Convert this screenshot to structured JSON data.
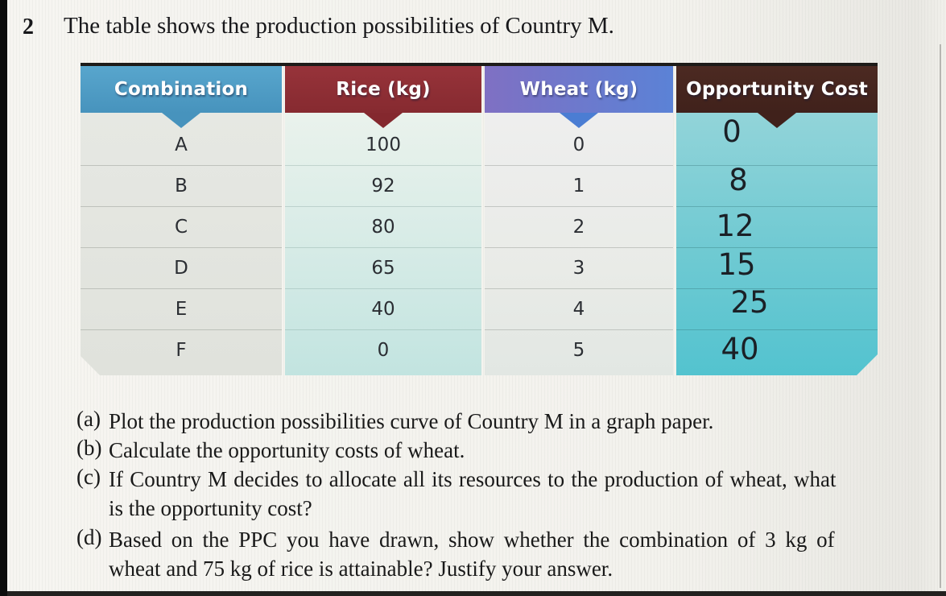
{
  "page": {
    "exercise_number": "2",
    "title": "The table shows the production possibilities of Country M."
  },
  "table": {
    "columns": [
      {
        "label": "Combination"
      },
      {
        "label": "Rice (kg)"
      },
      {
        "label": "Wheat (kg)"
      },
      {
        "label": "Opportunity Cost"
      }
    ],
    "rows": [
      {
        "combination": "A",
        "rice": "100",
        "wheat": "0",
        "opportunity_cost": "0"
      },
      {
        "combination": "B",
        "rice": "92",
        "wheat": "1",
        "opportunity_cost": "8"
      },
      {
        "combination": "C",
        "rice": "80",
        "wheat": "2",
        "opportunity_cost": "12"
      },
      {
        "combination": "D",
        "rice": "65",
        "wheat": "3",
        "opportunity_cost": "15"
      },
      {
        "combination": "E",
        "rice": "40",
        "wheat": "4",
        "opportunity_cost": "25"
      },
      {
        "combination": "F",
        "rice": "0",
        "wheat": "5",
        "opportunity_cost": "40"
      }
    ]
  },
  "questions": [
    {
      "label": "(a)",
      "lines": [
        "Plot the production possibilities curve of Country M in a graph paper."
      ]
    },
    {
      "label": "(b)",
      "lines": [
        "Calculate the opportunity costs of wheat."
      ]
    },
    {
      "label": "(c)",
      "lines": [
        "If Country M decides to allocate all its resources to the production of wheat, what",
        "is the opportunity cost?"
      ]
    },
    {
      "label": "(d)",
      "lines": [
        "Based on the PPC you have drawn, show whether the combination of 3 kg of",
        "wheat and 75 kg of rice is attainable? Justify your answer."
      ]
    }
  ],
  "colors": {
    "combination_header": "#4793bd",
    "rice_header": "#8a2d33",
    "wheat_header_left": "#7f70c3",
    "wheat_header_right": "#5b82d6",
    "opportunity_header": "#40211b",
    "opportunity_body_teal": "#5cc6d0",
    "rice_body_mint": "#cfe8e3",
    "page_background": "#f3f2ed"
  }
}
